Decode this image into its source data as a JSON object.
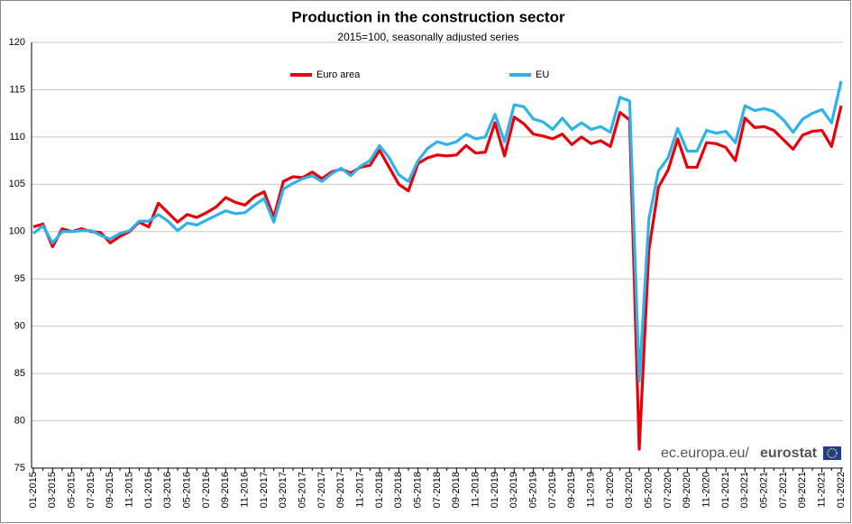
{
  "chart_data": {
    "type": "line",
    "title": "Production in the construction sector",
    "subtitle": "2015=100, seasonally adjusted series",
    "source": {
      "site": "ec.europa.eu/",
      "brand": "eurostat"
    },
    "categories": [
      "01-2015",
      null,
      "03-2015",
      null,
      "05-2015",
      null,
      "07-2015",
      null,
      "09-2015",
      null,
      "11-2015",
      null,
      "01-2016",
      null,
      "03-2016",
      null,
      "05-2016",
      null,
      "07-2016",
      null,
      "09-2016",
      null,
      "11-2016",
      null,
      "01-2017",
      null,
      "03-2017",
      null,
      "05-2017",
      null,
      "07-2017",
      null,
      "09-2017",
      null,
      "11-2017",
      null,
      "01-2018",
      null,
      "03-2018",
      null,
      "05-2018",
      null,
      "07-2018",
      null,
      "09-2018",
      null,
      "11-2018",
      null,
      "01-2019",
      null,
      "03-2019",
      null,
      "05-2019",
      null,
      "07-2019",
      null,
      "09-2019",
      null,
      "11-2019",
      null,
      "01-2020",
      null,
      "03-2020",
      null,
      "05-2020",
      null,
      "07-2020",
      null,
      "09-2020",
      null,
      "11-2020",
      null,
      "01-2021",
      null,
      "03-2021",
      null,
      "05-2021",
      null,
      "07-2021",
      null,
      "09-2021",
      null,
      "11-2021",
      null,
      "01-2022"
    ],
    "series": [
      {
        "name": "Euro area",
        "color": "#e8000b",
        "values": [
          100.5,
          100.8,
          98.4,
          100.3,
          100.0,
          100.3,
          100.0,
          99.9,
          98.8,
          99.5,
          100.0,
          101.0,
          100.5,
          103.0,
          102.0,
          101.0,
          101.8,
          101.5,
          102.0,
          102.6,
          103.6,
          103.1,
          102.8,
          103.7,
          104.2,
          101.5,
          105.3,
          105.8,
          105.7,
          106.3,
          105.6,
          106.3,
          106.6,
          106.2,
          106.8,
          107.0,
          108.6,
          106.8,
          105.0,
          104.3,
          107.2,
          107.8,
          108.1,
          108.0,
          108.1,
          109.1,
          108.3,
          108.4,
          111.5,
          108.0,
          112.1,
          111.4,
          110.3,
          110.1,
          109.8,
          110.3,
          109.2,
          110.0,
          109.3,
          109.6,
          109.0,
          112.6,
          111.8,
          77.0,
          98.0,
          104.7,
          106.5,
          109.8,
          106.8,
          106.8,
          109.4,
          109.3,
          108.9,
          107.5,
          112.0,
          111.0,
          111.1,
          110.7,
          109.7,
          108.7,
          110.2,
          110.6,
          110.7,
          109.0,
          113.3
        ]
      },
      {
        "name": "EU",
        "color": "#2db3e8",
        "values": [
          99.8,
          100.6,
          98.8,
          100.0,
          100.0,
          100.1,
          100.1,
          99.6,
          99.2,
          99.8,
          100.1,
          101.1,
          101.1,
          101.8,
          101.1,
          100.1,
          100.9,
          100.7,
          101.2,
          101.7,
          102.2,
          101.9,
          102.0,
          102.8,
          103.5,
          101.0,
          104.5,
          105.1,
          105.6,
          105.9,
          105.3,
          106.1,
          106.7,
          105.9,
          106.9,
          107.5,
          109.1,
          107.8,
          106.0,
          105.3,
          107.5,
          108.8,
          109.5,
          109.2,
          109.5,
          110.3,
          109.8,
          110.0,
          112.4,
          109.5,
          113.4,
          113.2,
          111.9,
          111.6,
          110.8,
          112.0,
          110.8,
          111.5,
          110.8,
          111.1,
          110.5,
          114.2,
          113.8,
          84.2,
          101.3,
          106.4,
          107.8,
          110.9,
          108.5,
          108.5,
          110.7,
          110.4,
          110.6,
          109.4,
          113.3,
          112.8,
          113.0,
          112.7,
          111.8,
          110.5,
          111.9,
          112.5,
          112.9,
          111.5,
          115.9
        ]
      }
    ],
    "ylim": [
      75,
      120
    ],
    "yticks": [
      75,
      80,
      85,
      90,
      95,
      100,
      105,
      110,
      115,
      120
    ],
    "grid": true
  }
}
